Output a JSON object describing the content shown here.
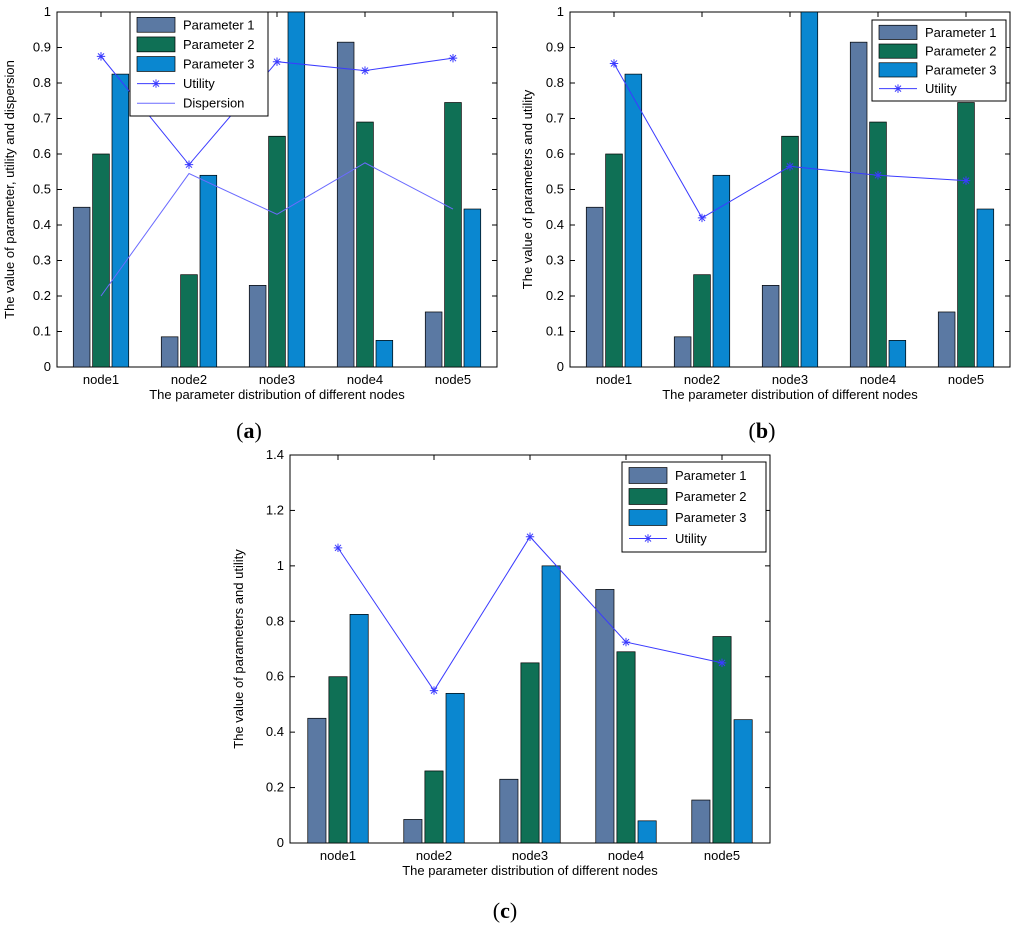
{
  "colors": {
    "param1": "#5b79a3",
    "param2": "#0f7055",
    "param3": "#0a87d0",
    "utility": "#3b3bff",
    "dispersion": "#6b6bff"
  },
  "chart_data": [
    {
      "panel": "a",
      "type": "bar",
      "categories": [
        "node1",
        "node2",
        "node3",
        "node4",
        "node5"
      ],
      "xlabel": "The parameter distribution of different nodes",
      "ylabel": "The value of parameter, utility and dispersion",
      "ylim": [
        0,
        1
      ],
      "yticks": [
        "0",
        "0.1",
        "0.2",
        "0.3",
        "0.4",
        "0.5",
        "0.6",
        "0.7",
        "0.8",
        "0.9",
        "1"
      ],
      "legend_position": "top-center",
      "series": [
        {
          "name": "Parameter 1",
          "kind": "bar",
          "values": [
            0.45,
            0.085,
            0.23,
            0.915,
            0.155
          ]
        },
        {
          "name": "Parameter 2",
          "kind": "bar",
          "values": [
            0.6,
            0.26,
            0.65,
            0.69,
            0.745
          ]
        },
        {
          "name": "Parameter 3",
          "kind": "bar",
          "values": [
            0.825,
            0.54,
            1.0,
            0.075,
            0.445
          ]
        },
        {
          "name": "Utility",
          "kind": "line-marker",
          "values": [
            0.875,
            0.57,
            0.86,
            0.835,
            0.87
          ]
        },
        {
          "name": "Dispersion",
          "kind": "line",
          "values": [
            0.2,
            0.545,
            0.43,
            0.575,
            0.445
          ]
        }
      ]
    },
    {
      "panel": "b",
      "type": "bar",
      "categories": [
        "node1",
        "node2",
        "node3",
        "node4",
        "node5"
      ],
      "xlabel": "The parameter distribution of different nodes",
      "ylabel": "The value of parameters and utility",
      "ylim": [
        0,
        1
      ],
      "yticks": [
        "0",
        "0.1",
        "0.2",
        "0.3",
        "0.4",
        "0.5",
        "0.6",
        "0.7",
        "0.8",
        "0.9",
        "1"
      ],
      "legend_position": "top-right",
      "series": [
        {
          "name": "Parameter 1",
          "kind": "bar",
          "values": [
            0.45,
            0.085,
            0.23,
            0.915,
            0.155
          ]
        },
        {
          "name": "Parameter 2",
          "kind": "bar",
          "values": [
            0.6,
            0.26,
            0.65,
            0.69,
            0.745
          ]
        },
        {
          "name": "Parameter 3",
          "kind": "bar",
          "values": [
            0.825,
            0.54,
            1.0,
            0.075,
            0.445
          ]
        },
        {
          "name": "Utility",
          "kind": "line-marker",
          "values": [
            0.855,
            0.42,
            0.565,
            0.54,
            0.525
          ]
        }
      ]
    },
    {
      "panel": "c",
      "type": "bar",
      "categories": [
        "node1",
        "node2",
        "node3",
        "node4",
        "node5"
      ],
      "xlabel": "The parameter distribution of different nodes",
      "ylabel": "The value of parameters and utility",
      "ylim": [
        0,
        1.4
      ],
      "yticks": [
        "0",
        "0.2",
        "0.4",
        "0.6",
        "0.8",
        "1",
        "1.2",
        "1.4"
      ],
      "legend_position": "top-right",
      "series": [
        {
          "name": "Parameter 1",
          "kind": "bar",
          "values": [
            0.45,
            0.085,
            0.23,
            0.915,
            0.155
          ]
        },
        {
          "name": "Parameter 2",
          "kind": "bar",
          "values": [
            0.6,
            0.26,
            0.65,
            0.69,
            0.745
          ]
        },
        {
          "name": "Parameter 3",
          "kind": "bar",
          "values": [
            0.825,
            0.54,
            1.0,
            0.08,
            0.445
          ]
        },
        {
          "name": "Utility",
          "kind": "line-marker",
          "values": [
            1.065,
            0.55,
            1.105,
            0.725,
            0.65
          ]
        }
      ]
    }
  ],
  "labels": {
    "a": {
      "open": "(",
      "letter": "a",
      "close": ")"
    },
    "b": {
      "open": "(",
      "letter": "b",
      "close": ")"
    },
    "c": {
      "open": "(",
      "letter": "c",
      "close": ")"
    }
  }
}
